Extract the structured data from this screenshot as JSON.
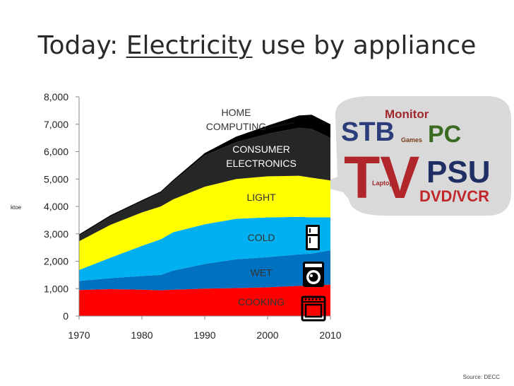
{
  "slide": {
    "title_prefix": "Today: ",
    "title_underlined": "Electricity",
    "title_suffix": " use by appliance",
    "source": "Source: DECC"
  },
  "chart_data": {
    "type": "area",
    "stacked": true,
    "ylabel": "ktoe",
    "ylim": [
      0,
      8000
    ],
    "yticks": [
      0,
      1000,
      2000,
      3000,
      4000,
      5000,
      6000,
      7000,
      8000
    ],
    "ytick_labels": [
      "0",
      "1,000",
      "2,000",
      "3,000",
      "4,000",
      "5,000",
      "6,000",
      "7,000",
      "8,000"
    ],
    "xlim": [
      1970,
      2010
    ],
    "xticks": [
      1970,
      1980,
      1990,
      2000,
      2010
    ],
    "x": [
      1970,
      1975,
      1980,
      1983,
      1985,
      1990,
      1995,
      2000,
      2005,
      2007,
      2010
    ],
    "series": [
      {
        "name": "COOKING",
        "color": "#ff0000",
        "values": [
          950,
          980,
          960,
          940,
          960,
          1000,
          1020,
          1050,
          1100,
          1100,
          1150
        ]
      },
      {
        "name": "WET",
        "color": "#0070c0",
        "values": [
          330,
          400,
          500,
          560,
          700,
          900,
          1050,
          1100,
          1150,
          1180,
          1250
        ]
      },
      {
        "name": "COLD",
        "color": "#00b0f0",
        "values": [
          400,
          750,
          1100,
          1300,
          1400,
          1450,
          1480,
          1450,
          1370,
          1320,
          1200
        ]
      },
      {
        "name": "LIGHT",
        "color": "#ffff00",
        "values": [
          1050,
          1200,
          1220,
          1200,
          1200,
          1370,
          1450,
          1500,
          1500,
          1450,
          1350
        ]
      },
      {
        "name": "CONSUMER ELECTRONICS",
        "color": "#262626",
        "values": [
          200,
          300,
          400,
          500,
          650,
          1150,
          1350,
          1550,
          1750,
          1780,
          1550
        ]
      },
      {
        "name": "HOME COMPUTING",
        "color": "#000000",
        "values": [
          50,
          50,
          50,
          50,
          60,
          80,
          200,
          300,
          450,
          520,
          500
        ]
      }
    ],
    "series_labels": [
      {
        "series": "COOKING",
        "lines": [
          "COOKING"
        ]
      },
      {
        "series": "WET",
        "lines": [
          "WET"
        ]
      },
      {
        "series": "COLD",
        "lines": [
          "COLD"
        ]
      },
      {
        "series": "LIGHT",
        "lines": [
          "LIGHT"
        ]
      },
      {
        "series": "CONSUMER ELECTRONICS",
        "lines": [
          "CONSUMER",
          "ELECTRONICS"
        ]
      },
      {
        "series": "HOME COMPUTING",
        "lines": [
          "HOME",
          "COMPUTING"
        ]
      }
    ]
  },
  "word_cloud": {
    "words": [
      {
        "text": "Monitor",
        "color": "#a0282d"
      },
      {
        "text": "STB",
        "color": "#2b3d7a"
      },
      {
        "text": "PC",
        "color": "#3a6b22"
      },
      {
        "text": "Games",
        "color": "#7a3b1a"
      },
      {
        "text": "TV",
        "color": "#b0262a"
      },
      {
        "text": "PSU",
        "color": "#1f2e63"
      },
      {
        "text": "Laptop",
        "color": "#a0282d"
      },
      {
        "text": "DVD/VCR",
        "color": "#c0262a"
      }
    ]
  },
  "icons": [
    "fridge-icon",
    "washing-machine-icon",
    "oven-icon"
  ]
}
